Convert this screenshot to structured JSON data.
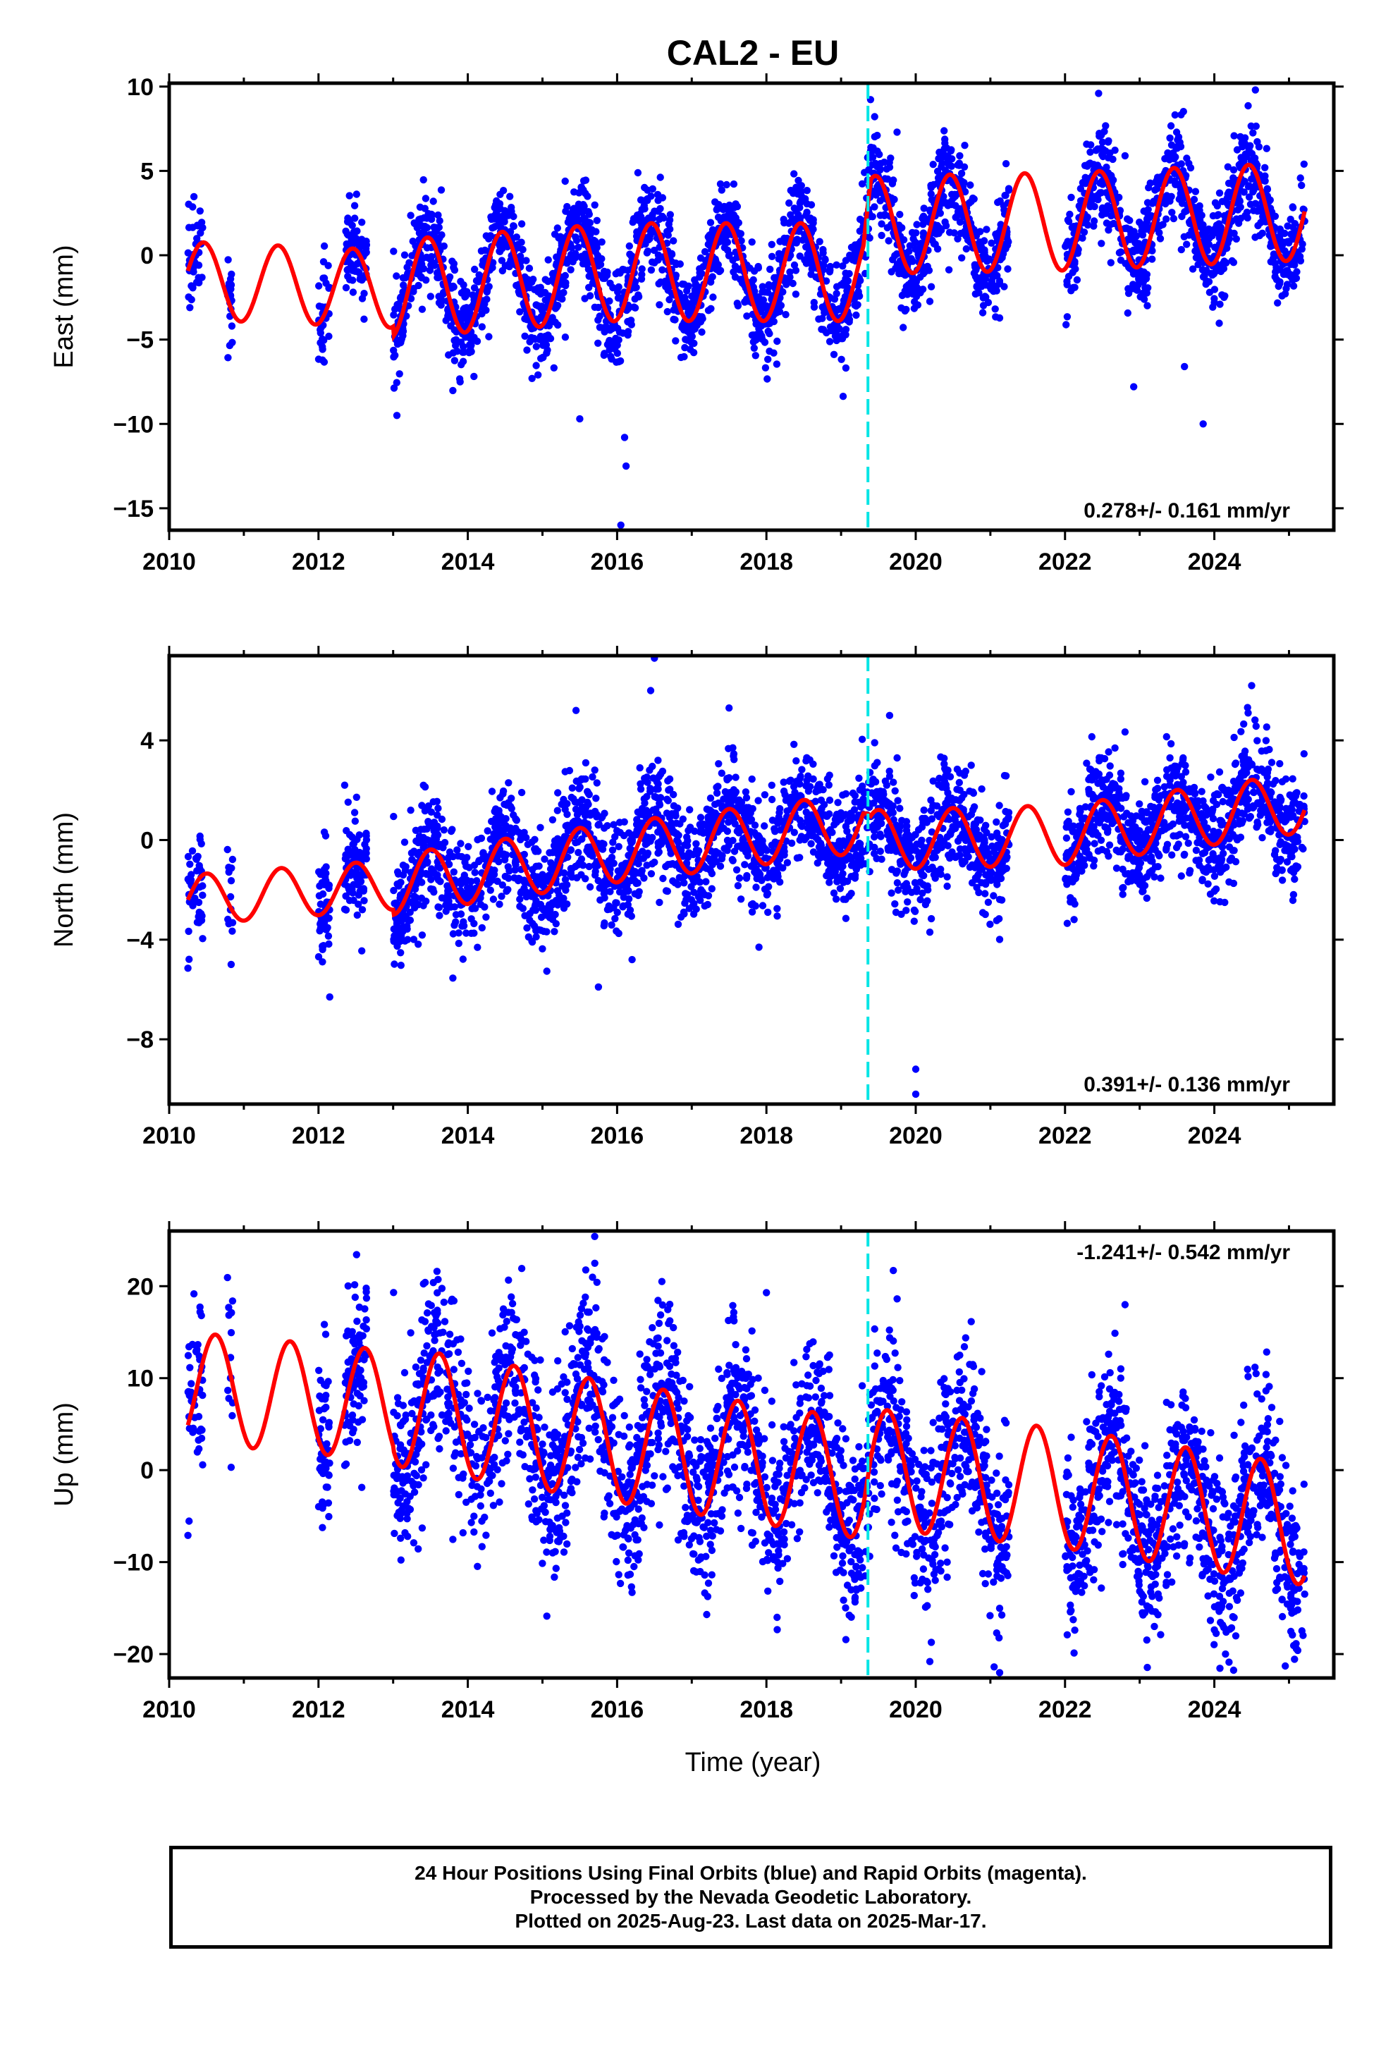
{
  "title": "CAL2 - EU",
  "colors": {
    "data": "#0000ff",
    "model": "#ff0000",
    "event_line": "#00e5e5",
    "frame": "#000000"
  },
  "xaxis": {
    "label": "Time (year)",
    "range": [
      2010,
      2025.6
    ],
    "ticks": [
      2010,
      2012,
      2014,
      2016,
      2018,
      2020,
      2022,
      2024
    ]
  },
  "event_line_year": 2019.36,
  "footer": {
    "line1": "24 Hour Positions Using Final Orbits (blue) and Rapid Orbits (magenta).",
    "line2": "Processed by the Nevada Geodetic Laboratory.",
    "line3": "Plotted on 2025-Aug-23. Last data on 2025-Mar-17."
  },
  "chart_data": [
    {
      "type": "scatter",
      "component": "east",
      "ylabel": "East (mm)",
      "ylim": [
        -16.3,
        10.2
      ],
      "yticks": [
        10,
        5,
        0,
        -5,
        -10,
        -15
      ],
      "rate_label": "0.278+/- 0.161 mm/yr",
      "rate_position": "bottom-right",
      "model": {
        "mean": [
          [
            2010.25,
            -1.5
          ],
          [
            2013.0,
            -2.0
          ],
          [
            2016.0,
            -1.0
          ],
          [
            2019.3,
            -1.0
          ],
          [
            2019.4,
            1.8
          ],
          [
            2022.0,
            2.0
          ],
          [
            2025.2,
            2.6
          ]
        ],
        "amplitude": 2.9,
        "amp_before_2013": 2.3,
        "phase_peak_year_fraction": 0.46
      },
      "scatter": {
        "noise_sd": 1.4,
        "density_per_year": 260
      },
      "data_gaps": [
        [
          2010.45,
          2010.78
        ],
        [
          2010.85,
          2012.0
        ],
        [
          2012.15,
          2012.35
        ],
        [
          2012.65,
          2013.0
        ],
        [
          2021.25,
          2022.0
        ]
      ],
      "outliers": [
        [
          2016.05,
          -16.0
        ],
        [
          2016.12,
          -12.5
        ],
        [
          2016.1,
          -10.8
        ],
        [
          2015.5,
          -9.7
        ],
        [
          2013.05,
          -9.5
        ],
        [
          2022.92,
          -7.8
        ],
        [
          2023.6,
          -6.6
        ],
        [
          2023.85,
          -10.0
        ],
        [
          2019.75,
          7.3
        ],
        [
          2024.55,
          9.8
        ],
        [
          2022.45,
          9.6
        ]
      ]
    },
    {
      "type": "scatter",
      "component": "north",
      "ylabel": "North (mm)",
      "ylim": [
        -10.6,
        7.4
      ],
      "yticks": [
        4,
        0,
        -4,
        -8
      ],
      "rate_label": "0.391+/- 0.136 mm/yr",
      "rate_position": "bottom-right",
      "model": {
        "mean": [
          [
            2010.25,
            -2.4
          ],
          [
            2013.0,
            -1.8
          ],
          [
            2016.0,
            -0.5
          ],
          [
            2019.3,
            0.7
          ],
          [
            2019.4,
            0.0
          ],
          [
            2022.0,
            0.2
          ],
          [
            2025.2,
            1.5
          ]
        ],
        "amplitude": 1.2,
        "amp_before_2013": 1.0,
        "phase_peak_year_fraction": 0.5
      },
      "scatter": {
        "noise_sd": 1.1,
        "density_per_year": 260
      },
      "data_gaps": [
        [
          2010.45,
          2010.78
        ],
        [
          2010.85,
          2012.0
        ],
        [
          2012.15,
          2012.35
        ],
        [
          2012.65,
          2013.0
        ],
        [
          2021.25,
          2022.0
        ]
      ],
      "outliers": [
        [
          2016.5,
          7.3
        ],
        [
          2016.45,
          6.0
        ],
        [
          2015.45,
          5.2
        ],
        [
          2017.5,
          5.3
        ],
        [
          2019.65,
          5.0
        ],
        [
          2024.5,
          6.2
        ],
        [
          2012.35,
          2.2
        ],
        [
          2012.15,
          -6.3
        ],
        [
          2015.75,
          -5.9
        ],
        [
          2020.0,
          -9.2
        ],
        [
          2020.0,
          -10.2
        ],
        [
          2016.2,
          -4.8
        ],
        [
          2017.9,
          -4.3
        ]
      ]
    },
    {
      "type": "scatter",
      "component": "up",
      "ylabel": "Up (mm)",
      "ylim": [
        -22.6,
        26.0
      ],
      "yticks": [
        20,
        10,
        0,
        -10,
        -20
      ],
      "rate_label": "-1.241+/- 0.542 mm/yr",
      "rate_position": "top-right",
      "model": {
        "mean": [
          [
            2010.25,
            9.0
          ],
          [
            2013.0,
            7.0
          ],
          [
            2016.0,
            3.0
          ],
          [
            2019.3,
            -1.0
          ],
          [
            2019.4,
            0.2
          ],
          [
            2022.0,
            -2.0
          ],
          [
            2025.2,
            -6.0
          ]
        ],
        "amplitude": 6.5,
        "amp_before_2013": 6.0,
        "phase_peak_year_fraction": 0.62
      },
      "scatter": {
        "noise_sd": 4.8,
        "density_per_year": 260
      },
      "data_gaps": [
        [
          2010.45,
          2010.78
        ],
        [
          2010.85,
          2012.0
        ],
        [
          2012.15,
          2012.35
        ],
        [
          2012.65,
          2013.0
        ],
        [
          2021.25,
          2022.0
        ]
      ],
      "outliers": [
        [
          2015.7,
          25.4
        ],
        [
          2019.7,
          21.7
        ],
        [
          2016.6,
          20.5
        ],
        [
          2018.0,
          19.3
        ],
        [
          2014.6,
          18.1
        ],
        [
          2021.05,
          -21.4
        ],
        [
          2024.95,
          -21.3
        ],
        [
          2024.15,
          -20.0
        ],
        [
          2017.2,
          -15.7
        ],
        [
          2016.2,
          -13.3
        ]
      ]
    }
  ]
}
